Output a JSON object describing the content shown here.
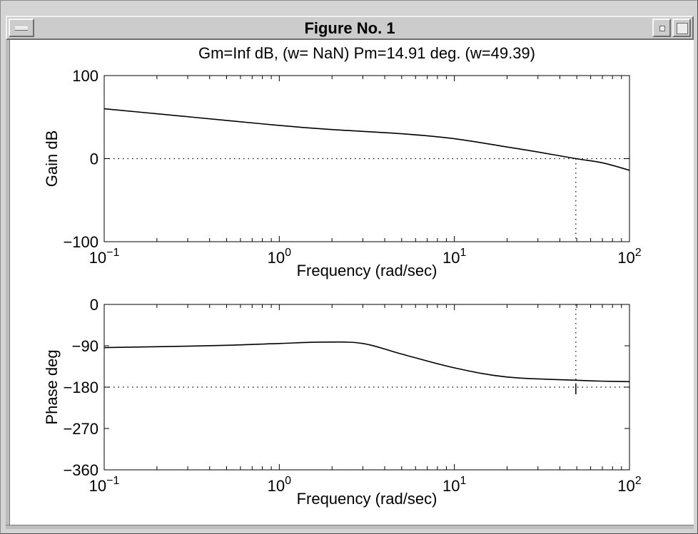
{
  "window": {
    "title": "Figure No. 1"
  },
  "chart_data": [
    {
      "type": "line",
      "title": "Gm=Inf dB, (w= NaN)   Pm=14.91 deg. (w=49.39)",
      "xlabel": "Frequency (rad/sec)",
      "ylabel": "Gain dB",
      "xscale": "log",
      "xlim": [
        0.1,
        100
      ],
      "ylim": [
        -100,
        100
      ],
      "x_ticks": [
        {
          "base": "10",
          "exp": "−1",
          "value": 0.1
        },
        {
          "base": "10",
          "exp": "0",
          "value": 1
        },
        {
          "base": "10",
          "exp": "1",
          "value": 10
        },
        {
          "base": "10",
          "exp": "2",
          "value": 100
        }
      ],
      "y_ticks": [
        "100",
        "0",
        "−100"
      ],
      "y_tick_values": [
        100,
        0,
        -100
      ],
      "reference_line_y": 0,
      "crossover_frequency": 49.39,
      "series": [
        {
          "x": [
            0.1,
            0.2,
            0.5,
            1,
            2,
            5,
            10,
            20,
            30,
            49.39,
            70,
            100
          ],
          "values": [
            60,
            54,
            46,
            40,
            35,
            30,
            24,
            14,
            8,
            0,
            -5,
            -14
          ]
        }
      ]
    },
    {
      "type": "line",
      "xlabel": "Frequency (rad/sec)",
      "ylabel": "Phase deg",
      "xscale": "log",
      "xlim": [
        0.1,
        100
      ],
      "ylim": [
        -360,
        0
      ],
      "x_ticks": [
        {
          "base": "10",
          "exp": "−1",
          "value": 0.1
        },
        {
          "base": "10",
          "exp": "0",
          "value": 1
        },
        {
          "base": "10",
          "exp": "1",
          "value": 10
        },
        {
          "base": "10",
          "exp": "2",
          "value": 100
        }
      ],
      "y_ticks": [
        "0",
        "−90",
        "−180",
        "−270",
        "−360"
      ],
      "y_tick_values": [
        0,
        -90,
        -180,
        -270,
        -360
      ],
      "reference_line_y": -180,
      "crossover_frequency": 49.39,
      "series": [
        {
          "x": [
            0.1,
            0.2,
            0.5,
            1,
            1.8,
            3,
            5,
            10,
            20,
            49.39,
            70,
            100
          ],
          "values": [
            -94,
            -92,
            -89,
            -85,
            -82,
            -85,
            -108,
            -138,
            -158,
            -165,
            -167,
            -168
          ]
        }
      ]
    }
  ]
}
